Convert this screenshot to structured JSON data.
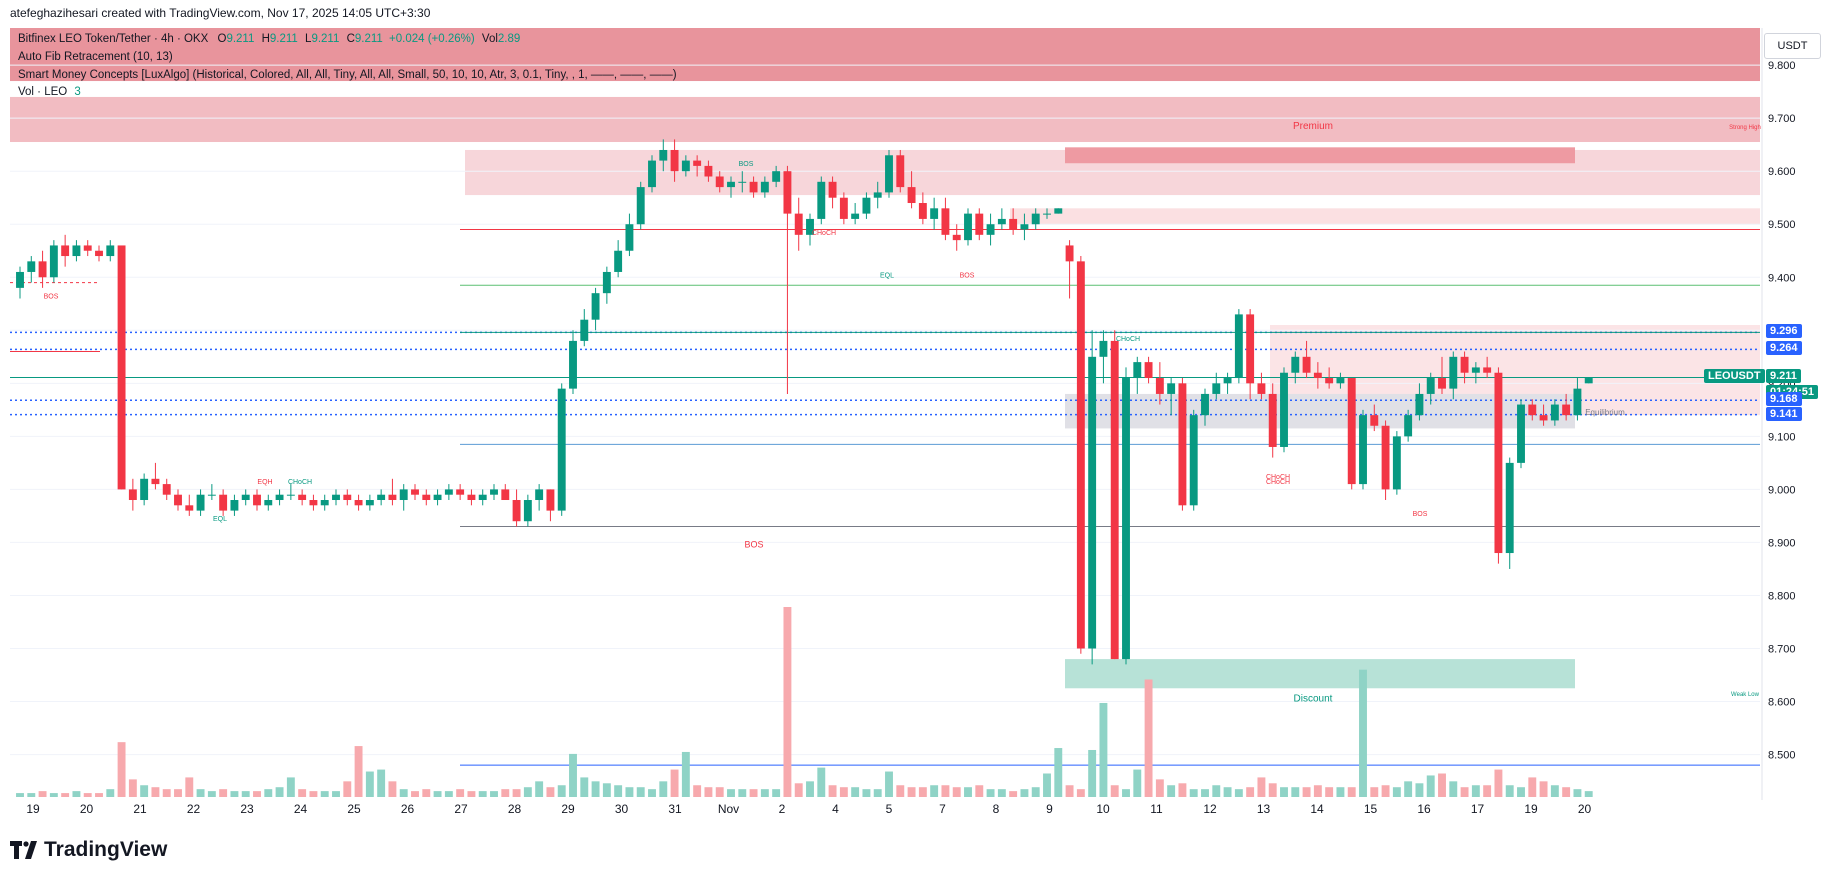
{
  "header": "atefeghazihesari created with TradingView.com, Nov 17, 2025 14:05 UTC+3:30",
  "legend": {
    "symbol_line": "Bitfinex LEO Token/Tether · 4h · OKX",
    "ohlc": {
      "o_label": "O",
      "o": "9.211",
      "h_label": "H",
      "h": "9.211",
      "l_label": "L",
      "l": "9.211",
      "c_label": "C",
      "c": "9.211",
      "change": "+0.024 (+0.26%)",
      "vol_label": "Vol",
      "vol": "2.89"
    },
    "indicator_fib": "Auto Fib Retracement (10, 13)",
    "indicator_smc": "Smart Money Concepts [LuxAlgo] (Historical, Colored, All, All, Tiny, All, All, Small, 50, 10, 10, Atr, 3, 0.1, Tiny, , 1, ——, ——, ——)",
    "vol_line": "Vol · LEO",
    "vol_value": "3"
  },
  "currency": "USDT",
  "symbol_tag": "LEOUSDT",
  "price_tags": [
    {
      "label": "9.296",
      "color": "#2962ff"
    },
    {
      "label": "9.264",
      "color": "#2962ff"
    },
    {
      "label": "9.211",
      "color": "#089981"
    },
    {
      "label": "01:24:51",
      "color": "#089981"
    },
    {
      "label": "9.168",
      "color": "#2962ff"
    },
    {
      "label": "9.141",
      "color": "#2962ff"
    }
  ],
  "colors": {
    "up": "#089981",
    "down": "#f23645",
    "vol_up": "#8fd3c6",
    "vol_down": "#f7a9ad",
    "fib_blue": "#2962ff"
  },
  "logo_text": "TradingView",
  "chart_data": {
    "type": "candlestick",
    "ylim": [
      8.42,
      9.87
    ],
    "y_ticks": [
      "9.800",
      "9.700",
      "9.600",
      "9.500",
      "9.400",
      "9.300",
      "9.200",
      "9.100",
      "9.000",
      "8.900",
      "8.800",
      "8.700",
      "8.600",
      "8.500"
    ],
    "x_ticks": [
      "19",
      "20",
      "21",
      "22",
      "23",
      "24",
      "25",
      "26",
      "27",
      "28",
      "29",
      "30",
      "31",
      "Nov",
      "2",
      "4",
      "5",
      "7",
      "8",
      "9",
      "10",
      "11",
      "12",
      "13",
      "14",
      "15",
      "16",
      "17",
      "19",
      "20"
    ],
    "candles": [
      [
        9.38,
        9.42,
        9.36,
        9.41
      ],
      [
        9.41,
        9.44,
        9.39,
        9.43
      ],
      [
        9.43,
        9.45,
        9.38,
        9.4
      ],
      [
        9.4,
        9.47,
        9.39,
        9.46
      ],
      [
        9.46,
        9.48,
        9.42,
        9.44
      ],
      [
        9.44,
        9.47,
        9.43,
        9.46
      ],
      [
        9.46,
        9.47,
        9.44,
        9.45
      ],
      [
        9.45,
        9.46,
        9.43,
        9.44
      ],
      [
        9.44,
        9.47,
        9.43,
        9.46
      ],
      [
        9.46,
        9.46,
        9.0,
        9.0
      ],
      [
        9.0,
        9.02,
        8.96,
        8.98
      ],
      [
        8.98,
        9.03,
        8.97,
        9.02
      ],
      [
        9.02,
        9.05,
        9.0,
        9.01
      ],
      [
        9.01,
        9.02,
        8.98,
        8.99
      ],
      [
        8.99,
        9.0,
        8.96,
        8.97
      ],
      [
        8.97,
        8.99,
        8.95,
        8.96
      ],
      [
        8.96,
        9.0,
        8.95,
        8.99
      ],
      [
        8.99,
        9.01,
        8.98,
        8.99
      ],
      [
        8.99,
        9.0,
        8.95,
        8.96
      ],
      [
        8.96,
        8.99,
        8.95,
        8.98
      ],
      [
        8.98,
        9.0,
        8.97,
        8.99
      ],
      [
        8.99,
        9.0,
        8.96,
        8.97
      ],
      [
        8.97,
        8.99,
        8.96,
        8.98
      ],
      [
        8.98,
        9.0,
        8.97,
        8.99
      ],
      [
        8.99,
        9.01,
        8.98,
        8.99
      ],
      [
        8.99,
        9.0,
        8.97,
        8.98
      ],
      [
        8.98,
        8.99,
        8.96,
        8.97
      ],
      [
        8.97,
        8.99,
        8.96,
        8.98
      ],
      [
        8.98,
        9.0,
        8.97,
        8.99
      ],
      [
        8.99,
        9.0,
        8.97,
        8.98
      ],
      [
        8.98,
        8.99,
        8.96,
        8.97
      ],
      [
        8.97,
        8.99,
        8.96,
        8.98
      ],
      [
        8.98,
        9.0,
        8.97,
        8.99
      ],
      [
        8.99,
        9.02,
        8.97,
        8.98
      ],
      [
        8.98,
        9.01,
        8.96,
        9.0
      ],
      [
        9.0,
        9.01,
        8.98,
        8.99
      ],
      [
        8.99,
        9.0,
        8.97,
        8.98
      ],
      [
        8.98,
        9.0,
        8.97,
        8.99
      ],
      [
        8.99,
        9.01,
        8.98,
        9.0
      ],
      [
        9.0,
        9.01,
        8.98,
        8.99
      ],
      [
        8.99,
        9.0,
        8.97,
        8.98
      ],
      [
        8.98,
        9.0,
        8.97,
        8.99
      ],
      [
        8.99,
        9.01,
        8.98,
        9.0
      ],
      [
        9.0,
        9.01,
        8.98,
        8.98
      ],
      [
        8.98,
        9.0,
        8.93,
        8.94
      ],
      [
        8.94,
        8.99,
        8.93,
        8.98
      ],
      [
        8.98,
        9.01,
        8.96,
        9.0
      ],
      [
        9.0,
        9.0,
        8.94,
        8.96
      ],
      [
        8.96,
        9.2,
        8.95,
        9.19
      ],
      [
        9.19,
        9.3,
        9.18,
        9.28
      ],
      [
        9.28,
        9.34,
        9.27,
        9.32
      ],
      [
        9.32,
        9.38,
        9.3,
        9.37
      ],
      [
        9.37,
        9.42,
        9.35,
        9.41
      ],
      [
        9.41,
        9.47,
        9.4,
        9.45
      ],
      [
        9.45,
        9.52,
        9.44,
        9.5
      ],
      [
        9.5,
        9.58,
        9.49,
        9.57
      ],
      [
        9.57,
        9.63,
        9.56,
        9.62
      ],
      [
        9.62,
        9.66,
        9.6,
        9.64
      ],
      [
        9.64,
        9.66,
        9.58,
        9.6
      ],
      [
        9.6,
        9.63,
        9.59,
        9.62
      ],
      [
        9.62,
        9.63,
        9.59,
        9.61
      ],
      [
        9.61,
        9.62,
        9.58,
        9.59
      ],
      [
        9.59,
        9.6,
        9.56,
        9.57
      ],
      [
        9.57,
        9.59,
        9.55,
        9.58
      ],
      [
        9.58,
        9.6,
        9.56,
        9.58
      ],
      [
        9.58,
        9.59,
        9.55,
        9.56
      ],
      [
        9.56,
        9.59,
        9.55,
        9.58
      ],
      [
        9.58,
        9.61,
        9.57,
        9.6
      ],
      [
        9.6,
        9.61,
        9.18,
        9.52
      ],
      [
        9.52,
        9.55,
        9.45,
        9.48
      ],
      [
        9.48,
        9.52,
        9.46,
        9.51
      ],
      [
        9.51,
        9.59,
        9.5,
        9.58
      ],
      [
        9.58,
        9.59,
        9.53,
        9.55
      ],
      [
        9.55,
        9.56,
        9.5,
        9.51
      ],
      [
        9.51,
        9.54,
        9.5,
        9.52
      ],
      [
        9.52,
        9.56,
        9.51,
        9.55
      ],
      [
        9.55,
        9.58,
        9.53,
        9.56
      ],
      [
        9.56,
        9.64,
        9.55,
        9.63
      ],
      [
        9.63,
        9.64,
        9.56,
        9.57
      ],
      [
        9.57,
        9.6,
        9.53,
        9.54
      ],
      [
        9.54,
        9.56,
        9.5,
        9.51
      ],
      [
        9.51,
        9.55,
        9.49,
        9.53
      ],
      [
        9.53,
        9.55,
        9.47,
        9.48
      ],
      [
        9.48,
        9.5,
        9.45,
        9.47
      ],
      [
        9.47,
        9.53,
        9.46,
        9.52
      ],
      [
        9.52,
        9.53,
        9.47,
        9.48
      ],
      [
        9.48,
        9.52,
        9.46,
        9.5
      ],
      [
        9.5,
        9.53,
        9.49,
        9.51
      ],
      [
        9.51,
        9.53,
        9.48,
        9.49
      ],
      [
        9.49,
        9.52,
        9.47,
        9.5
      ],
      [
        9.5,
        9.53,
        9.49,
        9.52
      ],
      [
        9.52,
        9.53,
        9.51,
        9.52
      ],
      [
        9.52,
        9.53,
        9.52,
        9.53
      ],
      [
        9.46,
        9.47,
        9.36,
        9.43
      ],
      [
        9.43,
        9.44,
        8.69,
        8.7
      ],
      [
        8.7,
        9.3,
        8.67,
        9.25
      ],
      [
        9.25,
        9.3,
        9.2,
        9.28
      ],
      [
        9.28,
        9.3,
        8.68,
        8.68
      ],
      [
        8.68,
        9.23,
        8.67,
        9.21
      ],
      [
        9.21,
        9.25,
        9.18,
        9.24
      ],
      [
        9.24,
        9.25,
        9.2,
        9.21
      ],
      [
        9.21,
        9.24,
        9.16,
        9.18
      ],
      [
        9.18,
        9.21,
        9.14,
        9.2
      ],
      [
        9.2,
        9.21,
        8.96,
        8.97
      ],
      [
        8.97,
        9.15,
        8.96,
        9.14
      ],
      [
        9.14,
        9.19,
        9.12,
        9.18
      ],
      [
        9.18,
        9.22,
        9.17,
        9.2
      ],
      [
        9.2,
        9.22,
        9.18,
        9.21
      ],
      [
        9.21,
        9.34,
        9.2,
        9.33
      ],
      [
        9.33,
        9.34,
        9.17,
        9.2
      ],
      [
        9.2,
        9.22,
        9.17,
        9.18
      ],
      [
        9.18,
        9.2,
        9.06,
        9.08
      ],
      [
        9.08,
        9.23,
        9.07,
        9.22
      ],
      [
        9.22,
        9.26,
        9.2,
        9.25
      ],
      [
        9.25,
        9.28,
        9.21,
        9.22
      ],
      [
        9.22,
        9.24,
        9.19,
        9.21
      ],
      [
        9.21,
        9.23,
        9.19,
        9.2
      ],
      [
        9.2,
        9.22,
        9.19,
        9.21
      ],
      [
        9.21,
        9.21,
        9.0,
        9.01
      ],
      [
        9.01,
        9.15,
        9.0,
        9.14
      ],
      [
        9.14,
        9.16,
        9.11,
        9.12
      ],
      [
        9.12,
        9.13,
        8.98,
        9.0
      ],
      [
        9.0,
        9.11,
        8.99,
        9.1
      ],
      [
        9.1,
        9.15,
        9.09,
        9.14
      ],
      [
        9.14,
        9.2,
        9.13,
        9.18
      ],
      [
        9.18,
        9.22,
        9.16,
        9.21
      ],
      [
        9.21,
        9.25,
        9.18,
        9.19
      ],
      [
        9.19,
        9.26,
        9.17,
        9.25
      ],
      [
        9.25,
        9.26,
        9.2,
        9.22
      ],
      [
        9.22,
        9.24,
        9.2,
        9.23
      ],
      [
        9.23,
        9.25,
        9.21,
        9.22
      ],
      [
        9.22,
        9.23,
        8.86,
        8.88
      ],
      [
        8.88,
        9.06,
        8.85,
        9.05
      ],
      [
        9.05,
        9.17,
        9.04,
        9.16
      ],
      [
        9.16,
        9.17,
        9.13,
        9.14
      ],
      [
        9.14,
        9.16,
        9.12,
        9.13
      ],
      [
        9.13,
        9.17,
        9.12,
        9.16
      ],
      [
        9.16,
        9.18,
        9.13,
        9.14
      ],
      [
        9.14,
        9.21,
        9.13,
        9.19
      ],
      [
        9.2,
        9.21,
        9.2,
        9.21
      ]
    ],
    "volume": [
      2,
      2,
      3,
      2,
      2,
      3,
      2,
      2,
      4,
      28,
      9,
      6,
      5,
      4,
      4,
      10,
      4,
      3,
      4,
      3,
      3,
      3,
      4,
      5,
      10,
      4,
      3,
      3,
      3,
      8,
      26,
      13,
      14,
      8,
      4,
      3,
      4,
      3,
      3,
      4,
      3,
      3,
      3,
      4,
      4,
      5,
      8,
      5,
      6,
      22,
      10,
      8,
      7,
      6,
      5,
      5,
      4,
      8,
      14,
      23,
      6,
      5,
      5,
      4,
      4,
      4,
      4,
      4,
      97,
      7,
      8,
      15,
      6,
      5,
      5,
      4,
      4,
      13,
      6,
      5,
      5,
      6,
      6,
      5,
      5,
      6,
      4,
      4,
      3,
      4,
      5,
      12,
      25,
      6,
      4,
      24,
      48,
      6,
      4,
      14,
      60,
      9,
      6,
      7,
      4,
      4,
      6,
      5,
      4,
      5,
      10,
      7,
      5,
      5,
      5,
      6,
      5,
      5,
      5,
      65,
      5,
      6,
      5,
      8,
      7,
      11,
      12,
      8,
      5,
      6,
      6,
      14,
      6,
      5,
      10,
      8,
      6,
      5,
      4,
      3
    ],
    "volume_dir": "matches candle color",
    "zones": [
      {
        "name": "Strong High zone",
        "from": 9.77,
        "to": 9.87,
        "color": "#e8949c"
      },
      {
        "name": "Premium",
        "from": 9.655,
        "to": 9.74,
        "color": "#f2bcc2"
      },
      {
        "name": "Discount",
        "from": 8.625,
        "to": 8.68,
        "color": "#b7e2d7"
      }
    ],
    "labels": [
      "BOS",
      "EQL",
      "EQH",
      "CHoCH",
      "CHoCH",
      "BOS",
      "CHoCH",
      "EQL",
      "BOS",
      "BOS",
      "CHoCH",
      "CHoCH",
      "BOS",
      "Premium",
      "Discount",
      "Equilibrium",
      "Strong High",
      "Weak Low"
    ],
    "fib_levels": [
      9.296,
      9.264,
      9.211,
      9.168,
      9.141
    ],
    "last_price": 9.211
  }
}
